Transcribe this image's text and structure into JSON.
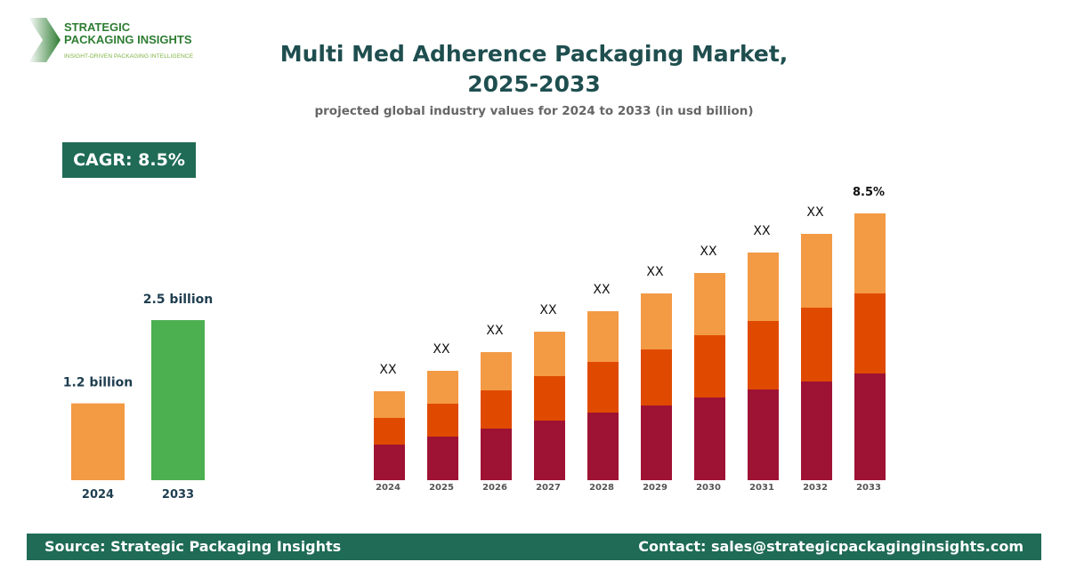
{
  "logo": {
    "line1": "STRATEGIC",
    "line2": "PACKAGING INSIGHTS",
    "tagline": "INSIGHT-DRIVEN PACKAGING INTELLIGENCE"
  },
  "header": {
    "title_line1": "Multi Med Adherence Packaging Market,",
    "title_line2": "2025-2033",
    "subtitle": "projected global industry values for 2024 to 2033 (in usd billion)"
  },
  "cagr": "CAGR: 8.5%",
  "footer": {
    "source": "Source: Strategic Packaging Insights",
    "contact": "Contact: sales@strategicpackaginginsights.com"
  },
  "chart_data": [
    {
      "type": "bar",
      "categories": [
        "2024",
        "2033"
      ],
      "values": [
        1.2,
        2.5
      ],
      "data_labels": [
        "1.2 billion",
        "2.5 billion"
      ],
      "colors": [
        "#f39a45",
        "#4caf50"
      ]
    },
    {
      "type": "bar",
      "stacked": true,
      "categories": [
        "2024",
        "2025",
        "2026",
        "2027",
        "2028",
        "2029",
        "2030",
        "2031",
        "2032",
        "2033"
      ],
      "series": [
        {
          "color": "#9e1233",
          "values": [
            40,
            49,
            58,
            67,
            76,
            84,
            93,
            102,
            111,
            120
          ]
        },
        {
          "color": "#e04a00",
          "values": [
            30,
            37,
            43,
            50,
            57,
            63,
            70,
            77,
            83,
            90
          ]
        },
        {
          "color": "#f39a45",
          "values": [
            30,
            37,
            43,
            50,
            57,
            63,
            70,
            77,
            83,
            90
          ]
        }
      ],
      "data_labels": [
        "XX",
        "XX",
        "XX",
        "XX",
        "XX",
        "XX",
        "XX",
        "XX",
        "XX",
        "8.5%"
      ]
    }
  ]
}
